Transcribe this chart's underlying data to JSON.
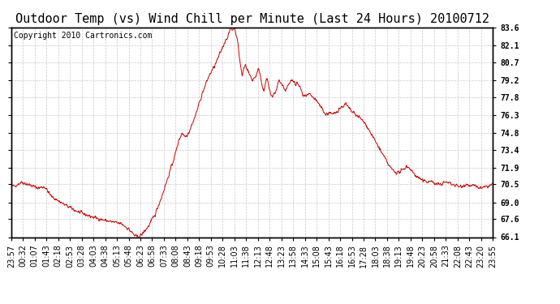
{
  "title": "Outdoor Temp (vs) Wind Chill per Minute (Last 24 Hours) 20100712",
  "copyright": "Copyright 2010 Cartronics.com",
  "line_color": "#cc0000",
  "bg_color": "#ffffff",
  "plot_bg_color": "#ffffff",
  "grid_color": "#c8c8c8",
  "ylim": [
    66.1,
    83.6
  ],
  "yticks": [
    66.1,
    67.6,
    69.0,
    70.5,
    71.9,
    73.4,
    74.8,
    76.3,
    77.8,
    79.2,
    80.7,
    82.1,
    83.6
  ],
  "x_labels": [
    "23:57",
    "00:32",
    "01:07",
    "01:43",
    "02:18",
    "02:53",
    "03:28",
    "04:03",
    "04:38",
    "05:13",
    "05:48",
    "06:23",
    "06:58",
    "07:33",
    "08:08",
    "08:43",
    "09:18",
    "09:53",
    "10:28",
    "11:03",
    "11:38",
    "12:13",
    "12:48",
    "13:23",
    "13:58",
    "14:33",
    "15:08",
    "15:43",
    "16:18",
    "16:53",
    "17:28",
    "18:03",
    "18:38",
    "19:13",
    "19:48",
    "20:23",
    "20:58",
    "21:33",
    "22:08",
    "22:43",
    "23:20",
    "23:55"
  ],
  "title_fontsize": 11,
  "tick_fontsize": 7,
  "copyright_fontsize": 7
}
